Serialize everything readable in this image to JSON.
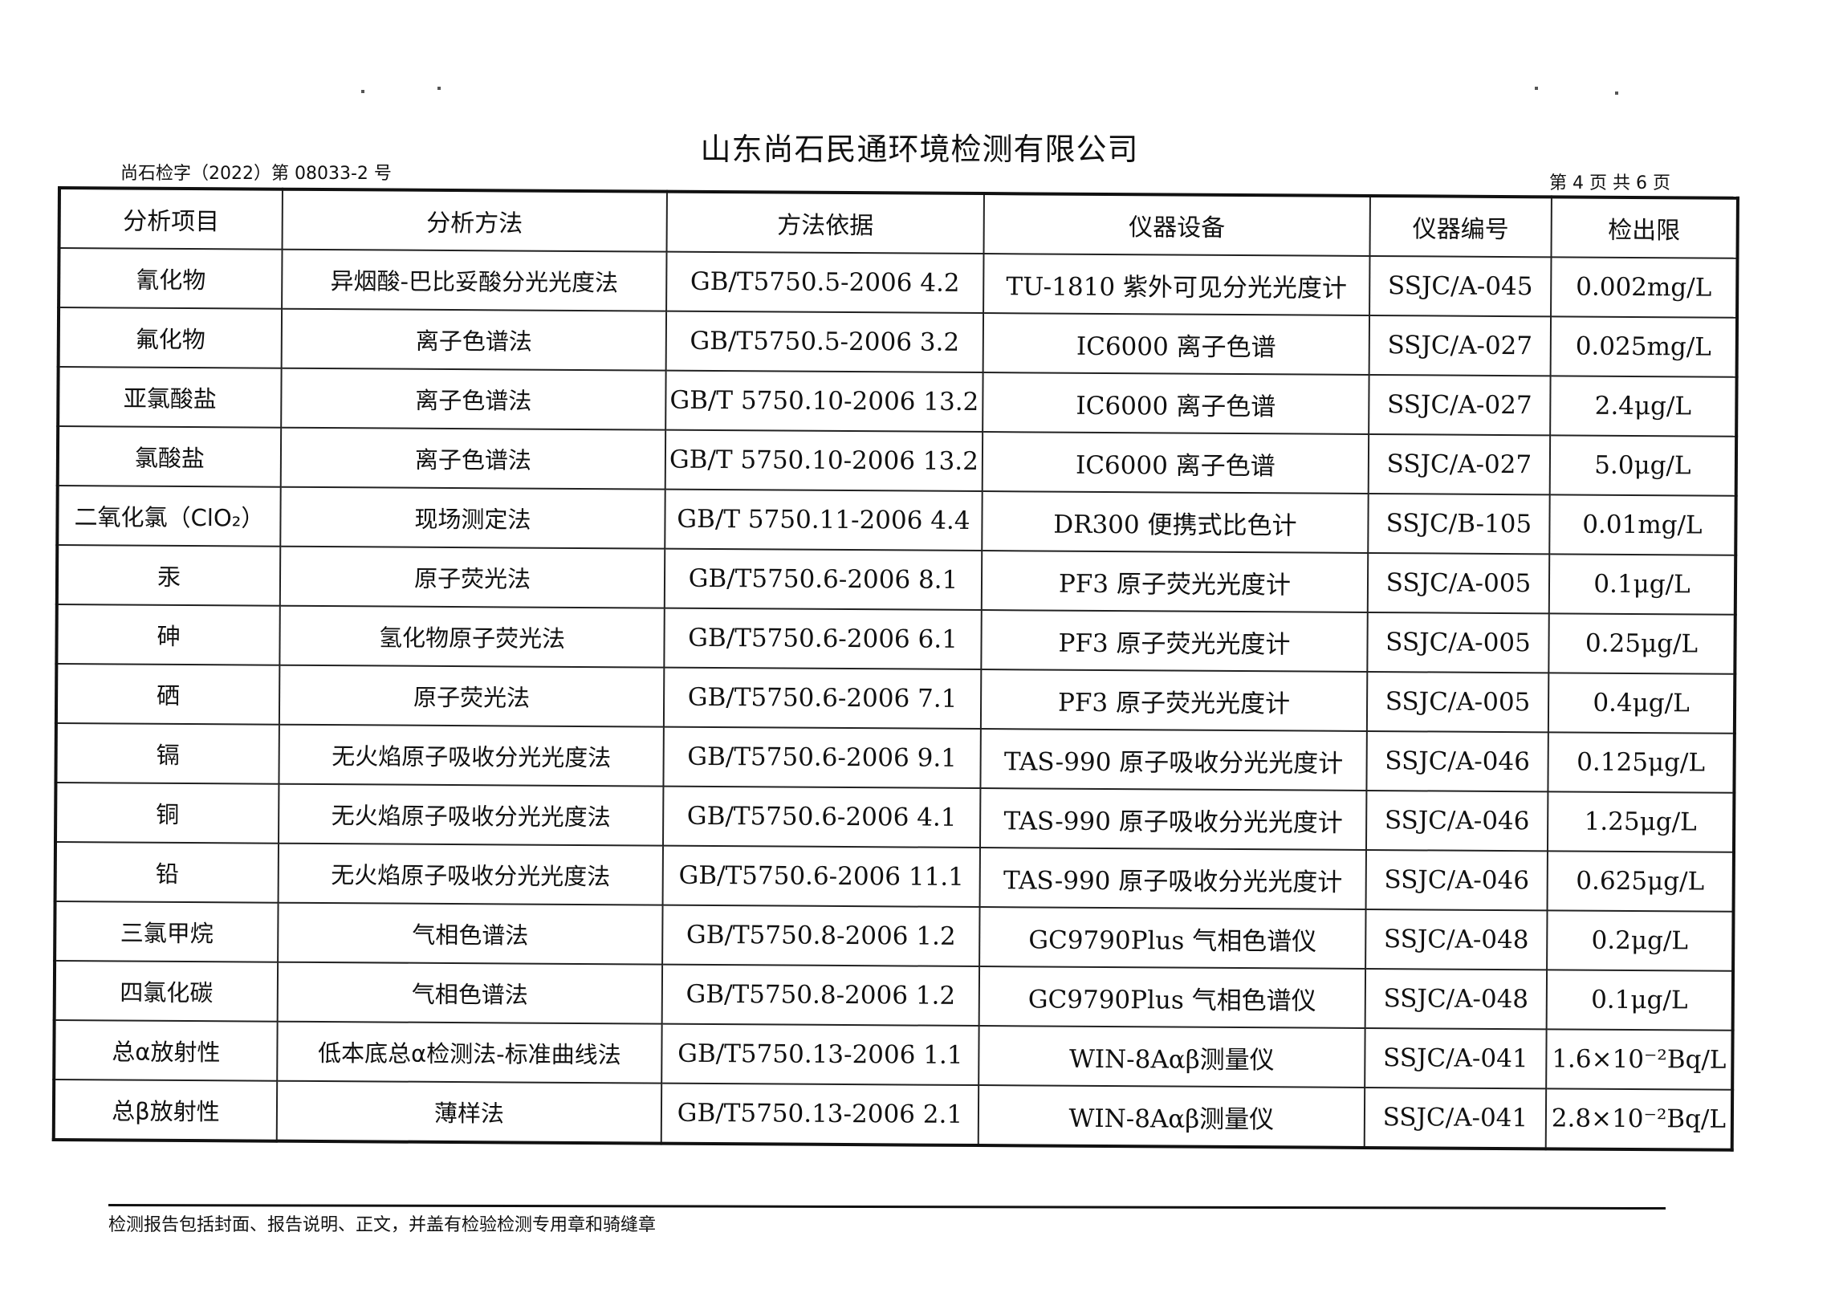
{
  "header": {
    "company": "山东尚石民通环境检测有限公司",
    "doc_number": "尚石检字（2022）第 08033-2 号",
    "page_info": "第 4 页 共 6 页"
  },
  "table": {
    "columns": [
      "分析项目",
      "分析方法",
      "方法依据",
      "仪器设备",
      "仪器编号",
      "检出限"
    ],
    "rows": [
      [
        "氰化物",
        "异烟酸-巴比妥酸分光光度法",
        "GB/T5750.5-2006 4.2",
        "TU-1810 紫外可见分光光度计",
        "SSJC/A-045",
        "0.002mg/L"
      ],
      [
        "氟化物",
        "离子色谱法",
        "GB/T5750.5-2006 3.2",
        "IC6000 离子色谱",
        "SSJC/A-027",
        "0.025mg/L"
      ],
      [
        "亚氯酸盐",
        "离子色谱法",
        "GB/T 5750.10-2006 13.2",
        "IC6000 离子色谱",
        "SSJC/A-027",
        "2.4μg/L"
      ],
      [
        "氯酸盐",
        "离子色谱法",
        "GB/T 5750.10-2006 13.2",
        "IC6000 离子色谱",
        "SSJC/A-027",
        "5.0μg/L"
      ],
      [
        "二氧化氯（ClO₂）",
        "现场测定法",
        "GB/T 5750.11-2006 4.4",
        "DR300 便携式比色计",
        "SSJC/B-105",
        "0.01mg/L"
      ],
      [
        "汞",
        "原子荧光法",
        "GB/T5750.6-2006 8.1",
        "PF3 原子荧光光度计",
        "SSJC/A-005",
        "0.1μg/L"
      ],
      [
        "砷",
        "氢化物原子荧光法",
        "GB/T5750.6-2006 6.1",
        "PF3 原子荧光光度计",
        "SSJC/A-005",
        "0.25μg/L"
      ],
      [
        "硒",
        "原子荧光法",
        "GB/T5750.6-2006 7.1",
        "PF3 原子荧光光度计",
        "SSJC/A-005",
        "0.4μg/L"
      ],
      [
        "镉",
        "无火焰原子吸收分光光度法",
        "GB/T5750.6-2006 9.1",
        "TAS-990 原子吸收分光光度计",
        "SSJC/A-046",
        "0.125μg/L"
      ],
      [
        "铜",
        "无火焰原子吸收分光光度法",
        "GB/T5750.6-2006 4.1",
        "TAS-990 原子吸收分光光度计",
        "SSJC/A-046",
        "1.25μg/L"
      ],
      [
        "铅",
        "无火焰原子吸收分光光度法",
        "GB/T5750.6-2006 11.1",
        "TAS-990 原子吸收分光光度计",
        "SSJC/A-046",
        "0.625μg/L"
      ],
      [
        "三氯甲烷",
        "气相色谱法",
        "GB/T5750.8-2006 1.2",
        "GC9790Plus 气相色谱仪",
        "SSJC/A-048",
        "0.2μg/L"
      ],
      [
        "四氯化碳",
        "气相色谱法",
        "GB/T5750.8-2006 1.2",
        "GC9790Plus 气相色谱仪",
        "SSJC/A-048",
        "0.1μg/L"
      ],
      [
        "总α放射性",
        "低本底总α检测法-标准曲线法",
        "GB/T5750.13-2006 1.1",
        "WIN-8Aαβ测量仪",
        "SSJC/A-041",
        "1.6×10⁻²Bq/L"
      ],
      [
        "总β放射性",
        "薄样法",
        "GB/T5750.13-2006 2.1",
        "WIN-8Aαβ测量仪",
        "SSJC/A-041",
        "2.8×10⁻²Bq/L"
      ]
    ]
  },
  "footer": {
    "note": "检测报告包括封面、报告说明、正文，并盖有检验检测专用章和骑缝章"
  }
}
